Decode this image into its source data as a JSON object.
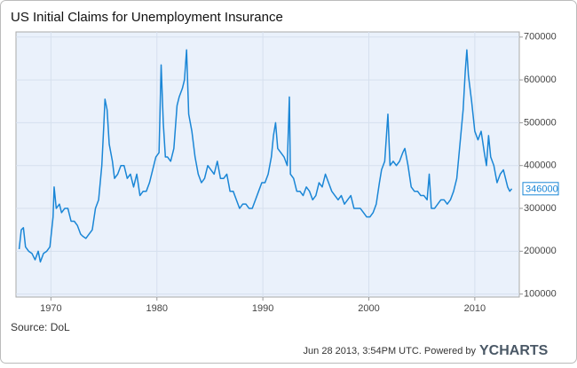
{
  "chart_data": {
    "type": "line",
    "title": "US Initial Claims for Unemployment Insurance",
    "source": "Source: DoL",
    "footer": "Jun 28 2013, 3:54PM UTC. Powered by",
    "logo": "YCHARTS",
    "current_value": 346000,
    "x": [
      1967.0,
      1967.2,
      1967.4,
      1967.6,
      1967.9,
      1968.2,
      1968.5,
      1968.8,
      1969.0,
      1969.3,
      1969.6,
      1969.9,
      1970.2,
      1970.3,
      1970.5,
      1970.8,
      1971.0,
      1971.3,
      1971.6,
      1971.9,
      1972.2,
      1972.5,
      1972.8,
      1973.0,
      1973.3,
      1973.6,
      1973.9,
      1974.2,
      1974.5,
      1974.8,
      1975.0,
      1975.1,
      1975.3,
      1975.5,
      1975.8,
      1976.0,
      1976.3,
      1976.6,
      1976.9,
      1977.2,
      1977.5,
      1977.8,
      1978.1,
      1978.4,
      1978.7,
      1979.0,
      1979.3,
      1979.6,
      1979.9,
      1980.2,
      1980.4,
      1980.6,
      1980.8,
      1981.0,
      1981.3,
      1981.6,
      1981.9,
      1982.1,
      1982.4,
      1982.6,
      1982.8,
      1983.0,
      1983.3,
      1983.6,
      1983.9,
      1984.2,
      1984.5,
      1984.8,
      1985.1,
      1985.4,
      1985.7,
      1986.0,
      1986.3,
      1986.6,
      1986.9,
      1987.2,
      1987.5,
      1987.8,
      1988.1,
      1988.4,
      1988.7,
      1989.0,
      1989.3,
      1989.6,
      1989.9,
      1990.2,
      1990.5,
      1990.8,
      1991.0,
      1991.2,
      1991.4,
      1991.7,
      1992.0,
      1992.3,
      1992.5,
      1992.6,
      1992.9,
      1993.2,
      1993.5,
      1993.8,
      1994.1,
      1994.4,
      1994.7,
      1995.0,
      1995.3,
      1995.6,
      1995.9,
      1996.2,
      1996.5,
      1996.8,
      1997.1,
      1997.4,
      1997.7,
      1998.0,
      1998.3,
      1998.6,
      1998.9,
      1999.2,
      1999.5,
      1999.8,
      2000.1,
      2000.4,
      2000.7,
      2001.0,
      2001.2,
      2001.5,
      2001.8,
      2002.0,
      2002.3,
      2002.6,
      2002.9,
      2003.2,
      2003.4,
      2003.7,
      2004.0,
      2004.3,
      2004.6,
      2004.9,
      2005.2,
      2005.5,
      2005.7,
      2005.9,
      2006.2,
      2006.5,
      2006.8,
      2007.1,
      2007.4,
      2007.7,
      2008.0,
      2008.3,
      2008.6,
      2008.9,
      2009.1,
      2009.25,
      2009.4,
      2009.7,
      2010.0,
      2010.3,
      2010.6,
      2010.9,
      2011.1,
      2011.3,
      2011.5,
      2011.8,
      2012.1,
      2012.4,
      2012.7,
      2012.9,
      2013.1,
      2013.3,
      2013.49
    ],
    "series": [
      {
        "name": "US Initial Claims for Unemployment Insurance",
        "color": "#1a86d6",
        "values": [
          205000,
          250000,
          255000,
          210000,
          200000,
          195000,
          180000,
          200000,
          175000,
          195000,
          200000,
          210000,
          280000,
          350000,
          300000,
          310000,
          290000,
          300000,
          300000,
          270000,
          270000,
          260000,
          240000,
          235000,
          230000,
          240000,
          250000,
          300000,
          320000,
          400000,
          500000,
          555000,
          530000,
          450000,
          410000,
          370000,
          380000,
          400000,
          400000,
          370000,
          380000,
          350000,
          380000,
          330000,
          340000,
          340000,
          360000,
          390000,
          420000,
          430000,
          635000,
          500000,
          420000,
          420000,
          410000,
          440000,
          540000,
          560000,
          580000,
          600000,
          670000,
          520000,
          480000,
          420000,
          380000,
          360000,
          370000,
          400000,
          390000,
          380000,
          410000,
          370000,
          370000,
          380000,
          340000,
          340000,
          320000,
          300000,
          310000,
          310000,
          300000,
          300000,
          320000,
          340000,
          360000,
          360000,
          380000,
          420000,
          470000,
          500000,
          440000,
          430000,
          420000,
          400000,
          560000,
          380000,
          370000,
          340000,
          340000,
          330000,
          350000,
          340000,
          320000,
          330000,
          360000,
          350000,
          380000,
          360000,
          340000,
          330000,
          320000,
          330000,
          310000,
          320000,
          330000,
          300000,
          300000,
          300000,
          290000,
          280000,
          280000,
          290000,
          310000,
          360000,
          390000,
          410000,
          520000,
          400000,
          410000,
          400000,
          410000,
          430000,
          440000,
          400000,
          350000,
          340000,
          340000,
          330000,
          330000,
          320000,
          380000,
          300000,
          300000,
          310000,
          320000,
          320000,
          310000,
          320000,
          340000,
          370000,
          450000,
          530000,
          620000,
          670000,
          610000,
          550000,
          480000,
          460000,
          480000,
          430000,
          400000,
          470000,
          420000,
          400000,
          360000,
          380000,
          390000,
          370000,
          350000,
          340000,
          346000
        ]
      }
    ],
    "xlim": [
      1966.7,
      2014.2
    ],
    "ylim": [
      93000,
      712000
    ],
    "xticks": [
      1970,
      1980,
      1990,
      2000,
      2010
    ],
    "yticks": [
      100000,
      200000,
      300000,
      400000,
      500000,
      600000,
      700000
    ],
    "grid": true
  }
}
